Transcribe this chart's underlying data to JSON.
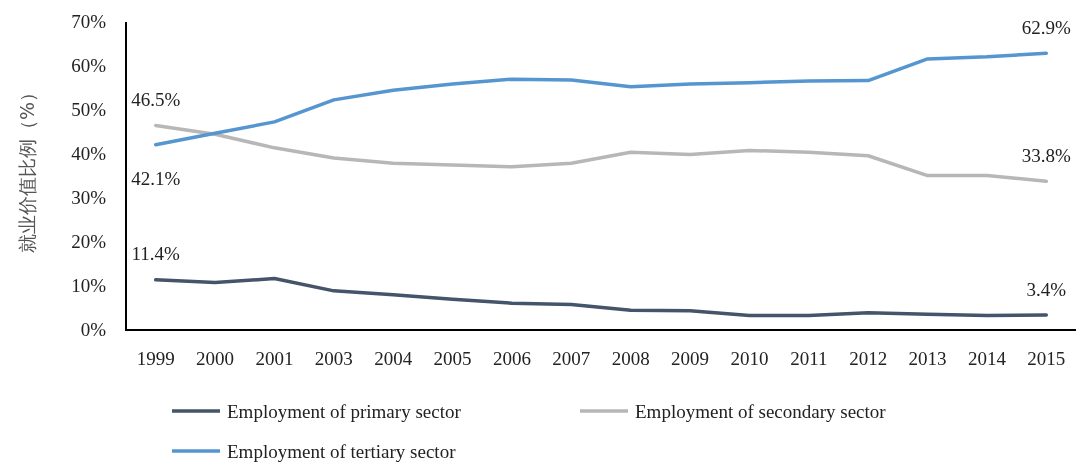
{
  "chart_data": {
    "type": "line",
    "ylabel": "就业价值比例（%）",
    "categories": [
      "1999",
      "2000",
      "2001",
      "2003",
      "2004",
      "2005",
      "2006",
      "2007",
      "2008",
      "2009",
      "2010",
      "2011",
      "2012",
      "2013",
      "2014",
      "2015"
    ],
    "ylim": [
      0,
      70
    ],
    "yticks": [
      {
        "value": 0,
        "label": "0%"
      },
      {
        "value": 10,
        "label": "10%"
      },
      {
        "value": 20,
        "label": "20%"
      },
      {
        "value": 30,
        "label": "30%"
      },
      {
        "value": 40,
        "label": "40%"
      },
      {
        "value": 50,
        "label": "50%"
      },
      {
        "value": 60,
        "label": "60%"
      },
      {
        "value": 70,
        "label": "70%"
      }
    ],
    "series": [
      {
        "name": "Employment of primary sector",
        "color": "#44546a",
        "values": [
          11.4,
          10.8,
          11.7,
          8.9,
          8.0,
          7.0,
          6.1,
          5.8,
          4.5,
          4.4,
          3.3,
          3.3,
          3.9,
          3.6,
          3.3,
          3.4
        ],
        "value_labels": [
          "11.4%",
          null,
          null,
          null,
          null,
          null,
          null,
          null,
          null,
          null,
          null,
          null,
          null,
          null,
          null,
          "3.4%"
        ]
      },
      {
        "name": "Employment of secondary sector",
        "color": "#b7b7b7",
        "values": [
          46.5,
          44.5,
          41.4,
          39.1,
          37.9,
          37.5,
          37.1,
          37.9,
          40.4,
          39.9,
          40.8,
          40.4,
          39.6,
          35.1,
          35.1,
          33.8
        ],
        "value_labels": [
          "46.5%",
          null,
          null,
          null,
          null,
          null,
          null,
          null,
          null,
          null,
          null,
          null,
          null,
          null,
          null,
          "33.8%"
        ]
      },
      {
        "name": "Employment of tertiary sector",
        "color": "#5596d0",
        "values": [
          42.1,
          44.7,
          47.3,
          52.3,
          54.5,
          55.9,
          57.0,
          56.8,
          55.3,
          55.9,
          56.2,
          56.6,
          56.7,
          61.6,
          62.1,
          62.9
        ],
        "value_labels": [
          "42.1%",
          null,
          null,
          null,
          null,
          null,
          null,
          null,
          null,
          null,
          null,
          null,
          null,
          null,
          null,
          "62.9%"
        ]
      }
    ],
    "legend": "bottom",
    "grid": false,
    "marker": "none",
    "line_style": "solid"
  }
}
